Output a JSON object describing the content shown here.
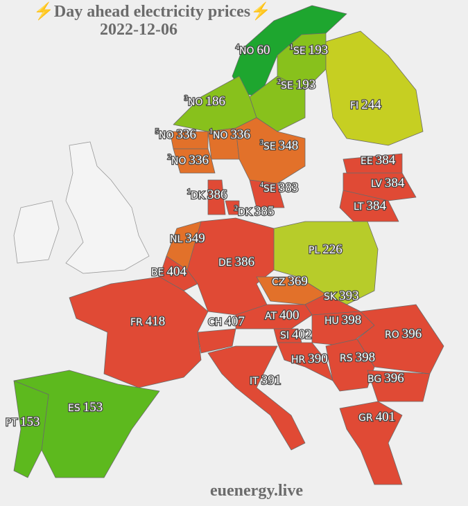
{
  "title": "⚡Day ahead electricity prices⚡",
  "date": "2022-12-06",
  "source": "euenergy.live",
  "regions": [
    {
      "zone": "4",
      "code": "NO",
      "price": 60,
      "color": "#1ea62f"
    },
    {
      "zone": "1",
      "code": "SE",
      "price": 193,
      "color": "#88c11c"
    },
    {
      "zone": "2",
      "code": "SE",
      "price": 193,
      "color": "#88c11c"
    },
    {
      "code": "FI",
      "price": 244,
      "color": "#c6cf22"
    },
    {
      "zone": "3",
      "code": "NO",
      "price": 186,
      "color": "#88c11c"
    },
    {
      "zone": "5",
      "code": "NO",
      "price": 336,
      "color": "#e2712a"
    },
    {
      "zone": "1",
      "code": "NO",
      "price": 336,
      "color": "#e2712a"
    },
    {
      "zone": "3",
      "code": "SE",
      "price": 348,
      "color": "#e2712a"
    },
    {
      "zone": "2",
      "code": "NO",
      "price": 336,
      "color": "#e2712a"
    },
    {
      "code": "EE",
      "price": 384,
      "color": "#e04a35"
    },
    {
      "code": "LV",
      "price": 384,
      "color": "#e04a35"
    },
    {
      "zone": "1",
      "code": "DK",
      "price": 386,
      "color": "#e04a35"
    },
    {
      "zone": "4",
      "code": "SE",
      "price": 383,
      "color": "#e04a35"
    },
    {
      "code": "LT",
      "price": 384,
      "color": "#e04a35"
    },
    {
      "zone": "2",
      "code": "DK",
      "price": 385,
      "color": "#e04a35"
    },
    {
      "code": "NL",
      "price": 349,
      "color": "#e2712a"
    },
    {
      "code": "PL",
      "price": 226,
      "color": "#b7cc2a"
    },
    {
      "code": "DE",
      "price": 386,
      "color": "#e04a35"
    },
    {
      "code": "BE",
      "price": 404,
      "color": "#e04a35"
    },
    {
      "code": "CZ",
      "price": 369,
      "color": "#e2712a"
    },
    {
      "code": "SK",
      "price": 393,
      "color": "#e04a35"
    },
    {
      "code": "AT",
      "price": 400,
      "color": "#e04a35"
    },
    {
      "code": "FR",
      "price": 418,
      "color": "#e04a35"
    },
    {
      "code": "CH",
      "price": 407,
      "color": "#e04a35"
    },
    {
      "code": "HU",
      "price": 398,
      "color": "#e04a35"
    },
    {
      "code": "SI",
      "price": 402,
      "color": "#e04a35"
    },
    {
      "code": "RO",
      "price": 396,
      "color": "#e04a35"
    },
    {
      "code": "HR",
      "price": 390,
      "color": "#e04a35"
    },
    {
      "code": "RS",
      "price": 398,
      "color": "#e04a35"
    },
    {
      "code": "IT",
      "price": 391,
      "color": "#e04a35"
    },
    {
      "code": "BG",
      "price": 396,
      "color": "#e04a35"
    },
    {
      "code": "ES",
      "price": 153,
      "color": "#5db91e"
    },
    {
      "code": "PT",
      "price": 153,
      "color": "#5db91e"
    },
    {
      "code": "GR",
      "price": 401,
      "color": "#e04a35"
    }
  ]
}
